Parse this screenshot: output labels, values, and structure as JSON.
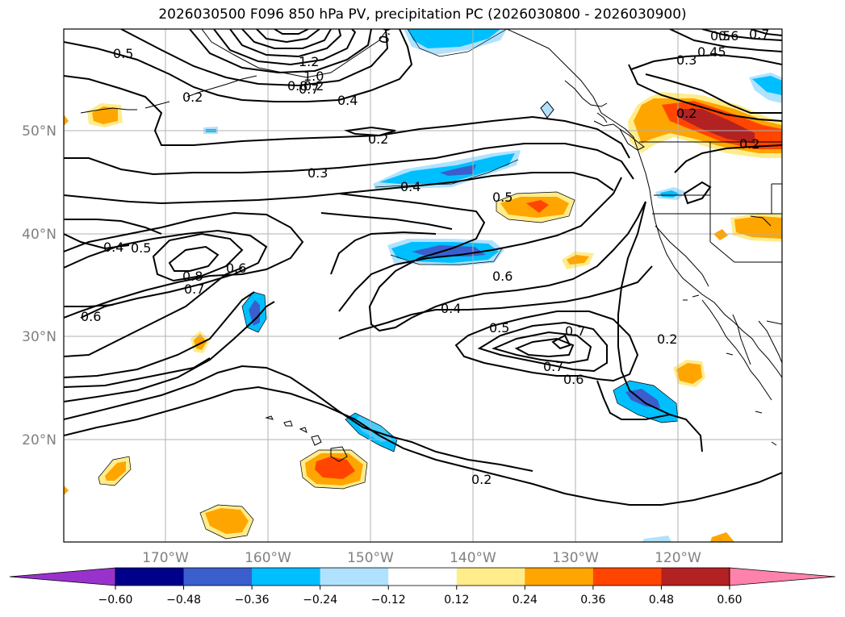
{
  "title": "2026030500 F096 850 hPa PV, precipitation PC (2026030800 - 2026030900)",
  "lat_labels": [
    "50°N",
    "40°N",
    "30°N",
    "20°N"
  ],
  "lon_labels": [
    "170°W",
    "160°W",
    "150°W",
    "140°W",
    "130°W",
    "120°W"
  ],
  "colorbar": {
    "colors": [
      "#9932cc",
      "#00008b",
      "#3a5fcd",
      "#00bfff",
      "#b0e2ff",
      "#ffffff",
      "#ffec8b",
      "#ffa500",
      "#ff4500",
      "#b22222",
      "#ff82ab"
    ],
    "tick_labels": [
      "−0.60",
      "−0.48",
      "−0.36",
      "−0.24",
      "−0.12",
      "0.12",
      "0.24",
      "0.36",
      "0.48",
      "0.60"
    ]
  },
  "contour_labels": [
    "0.5",
    "0.6",
    "1.2",
    "1.0",
    "0.8",
    "0.7",
    "0.4",
    "0.2",
    "0.3",
    "0.4",
    "0.5",
    "0.6",
    "0.7",
    "0.5",
    "0.4",
    "0.5",
    "0.8",
    "0.7",
    "0.6",
    "0.4",
    "0.6",
    "0.4",
    "0.5",
    "0.7",
    "0.6",
    "0.2",
    "0.2",
    "0.3",
    "0.45",
    "0.6",
    "0.7",
    "0.2",
    "0.2",
    "0.2",
    "0.2"
  ]
}
